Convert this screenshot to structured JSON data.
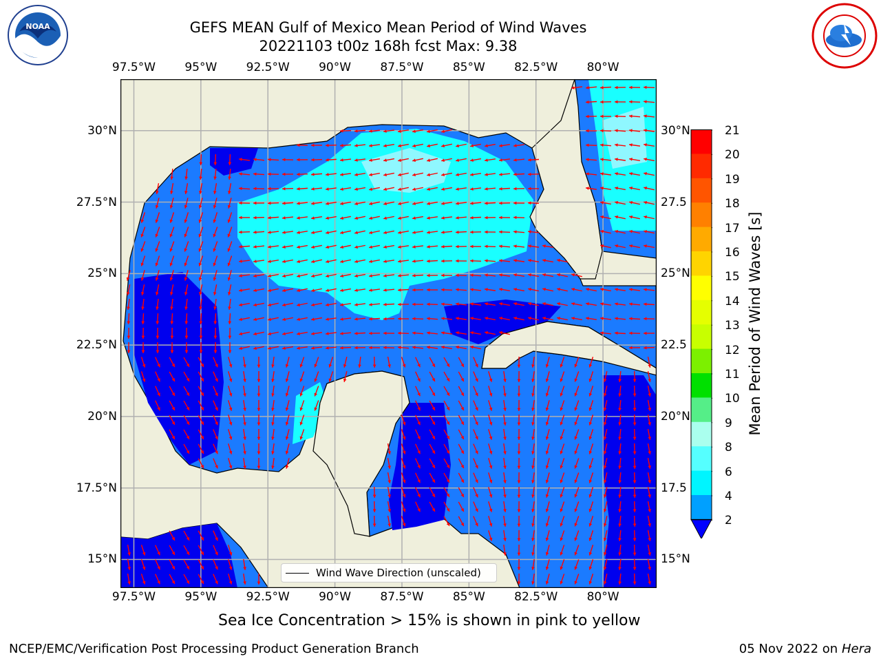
{
  "title": {
    "line1": "GEFS MEAN Gulf of Mexico Mean Period of Wind Waves",
    "line2": "20221103 t00z 168h fcst   Max: 9.38"
  },
  "logos": {
    "left": "noaa-logo",
    "right": "nws-logo"
  },
  "map": {
    "lon_ticks": [
      "97.5°W",
      "95°W",
      "92.5°W",
      "90°W",
      "87.5°W",
      "85°W",
      "82.5°W",
      "80°W"
    ],
    "lat_ticks": [
      "30°N",
      "27.5°N",
      "25°N",
      "22.5°N",
      "20°N",
      "17.5°N",
      "15°N"
    ],
    "lat_ticks_right": [
      "30°N",
      "27.5",
      "25°N",
      "22.5",
      "20°N",
      "17.5",
      "15°N"
    ],
    "lon_range": [
      -98.0,
      -78.0
    ],
    "lat_range": [
      14.0,
      31.8
    ],
    "land_color": "#efefdc",
    "vector_color": "#ff0000",
    "grid": true,
    "legend_text": "Wind Wave Direction (unscaled)"
  },
  "colorbar": {
    "label": "Mean Period of Wind Waves [s]",
    "ticks": [
      "21",
      "20",
      "19",
      "18",
      "17",
      "16",
      "15",
      "14",
      "13",
      "12",
      "11",
      "10",
      "9",
      "8",
      "6",
      "4",
      "2"
    ],
    "colors": [
      "#ff0000",
      "#ff2a00",
      "#ff5500",
      "#ff8000",
      "#ffaa00",
      "#ffd400",
      "#ffff00",
      "#e5ff00",
      "#c8ff00",
      "#7cf000",
      "#00e000",
      "#55ee88",
      "#aaffee",
      "#55ffff",
      "#00f5ff",
      "#00a0ff",
      "#0000ff"
    ]
  },
  "caption": "Sea Ice Concentration > 15% is shown in pink to yellow",
  "footer": {
    "left": "NCEP/EMC/Verification Post Processing Product Generation Branch",
    "right_date": "05 Nov 2022 on",
    "right_machine": "Hera"
  }
}
